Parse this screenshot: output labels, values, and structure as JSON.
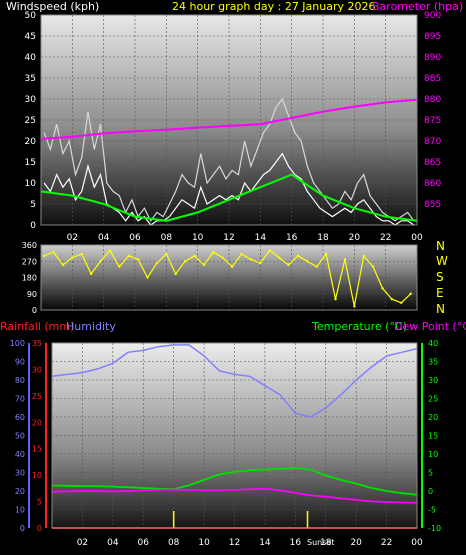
{
  "header": {
    "windspeed_label": "Windspeed (kph)",
    "title": "24 hour graph day : 27 January 2026",
    "barometer_label": "Barometer (hpa)"
  },
  "lower_header": {
    "rainfall_label": "Rainfall (mm)",
    "humidity_label": "Humidity",
    "temperature_label": "Temperature (°C)",
    "dewpoint_label": "Dew Point (°C)"
  },
  "compass": [
    "N",
    "W",
    "S",
    "E",
    "N"
  ],
  "sunset_label": "Sunset",
  "colors": {
    "windspeed": "#ffffff",
    "windgust": "#d8d8d8",
    "windavg": "#00ff00",
    "barometer": "#ff00ff",
    "direction": "#ffff00",
    "humidity": "#8080ff",
    "temperature": "#00e000",
    "dewpoint": "#ff00ff",
    "rainfall": "#ff2020",
    "title": "#ffff00"
  },
  "chart_data": [
    {
      "type": "line",
      "name": "wind-barometer",
      "xticks": [
        "02",
        "04",
        "06",
        "08",
        "10",
        "12",
        "14",
        "16",
        "18",
        "20",
        "22",
        "00"
      ],
      "xlim": [
        0,
        24
      ],
      "ylabel": "Windspeed (kph)",
      "ylim": [
        0,
        50
      ],
      "yticks": [
        0,
        5,
        10,
        15,
        20,
        25,
        30,
        35,
        40,
        45,
        50
      ],
      "y2label": "Barometer (hpa)",
      "y2lim": [
        850,
        900
      ],
      "y2ticks": [
        855,
        860,
        865,
        870,
        875,
        880,
        885,
        890,
        895,
        900
      ],
      "series": [
        {
          "name": "Windspeed gust",
          "x": [
            0.2,
            0.6,
            1.0,
            1.4,
            1.8,
            2.2,
            2.6,
            3.0,
            3.4,
            3.8,
            4.2,
            4.6,
            5.0,
            5.4,
            5.8,
            6.2,
            6.6,
            7.0,
            7.4,
            7.8,
            8.2,
            8.6,
            9.0,
            9.4,
            9.8,
            10.2,
            10.6,
            11.0,
            11.4,
            11.8,
            12.2,
            12.6,
            13.0,
            13.4,
            13.8,
            14.2,
            14.6,
            15.0,
            15.4,
            15.8,
            16.2,
            16.6,
            17.0,
            17.4,
            17.8,
            18.2,
            18.6,
            19.0,
            19.4,
            19.8,
            20.2,
            20.6,
            21.0,
            21.4,
            21.8,
            22.2,
            22.6,
            23.0,
            23.4,
            23.8
          ],
          "values": [
            22,
            18,
            24,
            17,
            20,
            12,
            16,
            27,
            18,
            24,
            10,
            8,
            7,
            3,
            6,
            2,
            4,
            1,
            3,
            2,
            5,
            8,
            12,
            10,
            9,
            17,
            10,
            12,
            14,
            11,
            13,
            12,
            20,
            14,
            18,
            22,
            24,
            28,
            30,
            26,
            22,
            20,
            14,
            10,
            8,
            6,
            4,
            5,
            8,
            6,
            10,
            12,
            7,
            5,
            3,
            2,
            1,
            2,
            3,
            1
          ]
        },
        {
          "name": "Windspeed",
          "x": [
            0.2,
            0.6,
            1.0,
            1.4,
            1.8,
            2.2,
            2.6,
            3.0,
            3.4,
            3.8,
            4.2,
            4.6,
            5.0,
            5.4,
            5.8,
            6.2,
            6.6,
            7.0,
            7.4,
            7.8,
            8.2,
            8.6,
            9.0,
            9.4,
            9.8,
            10.2,
            10.6,
            11.0,
            11.4,
            11.8,
            12.2,
            12.6,
            13.0,
            13.4,
            13.8,
            14.2,
            14.6,
            15.0,
            15.4,
            15.8,
            16.2,
            16.6,
            17.0,
            17.4,
            17.8,
            18.2,
            18.6,
            19.0,
            19.4,
            19.8,
            20.2,
            20.6,
            21.0,
            21.4,
            21.8,
            22.2,
            22.6,
            23.0,
            23.4,
            23.8
          ],
          "values": [
            10,
            8,
            12,
            9,
            11,
            6,
            8,
            14,
            9,
            12,
            5,
            4,
            3,
            1,
            3,
            1,
            2,
            0,
            1,
            1,
            2,
            4,
            6,
            5,
            4,
            9,
            5,
            6,
            7,
            6,
            7,
            6,
            10,
            8,
            10,
            12,
            13,
            15,
            17,
            14,
            12,
            11,
            8,
            6,
            4,
            3,
            2,
            3,
            4,
            3,
            5,
            6,
            4,
            2,
            1,
            1,
            0,
            1,
            1,
            0
          ]
        },
        {
          "name": "Windspeed average",
          "x": [
            0,
            2,
            4,
            6,
            8,
            10,
            12,
            14,
            16,
            18,
            20,
            22,
            24
          ],
          "values": [
            8,
            7,
            5,
            2,
            1,
            3,
            6,
            9,
            12,
            7,
            4,
            2,
            1
          ]
        },
        {
          "name": "Barometer",
          "x": [
            0,
            2,
            4,
            6,
            8,
            10,
            12,
            14,
            16,
            18,
            20,
            22,
            24
          ],
          "axis": "y2",
          "values": [
            870.5,
            871.0,
            871.8,
            872.3,
            872.7,
            873.2,
            873.6,
            874.0,
            875.5,
            877.0,
            878.2,
            879.2,
            879.8
          ]
        }
      ]
    },
    {
      "type": "scatter",
      "name": "wind-direction",
      "ylim": [
        0,
        360
      ],
      "yticks": [
        0,
        90,
        180,
        270,
        360
      ],
      "series": [
        {
          "name": "Direction",
          "x": [
            0.2,
            0.8,
            1.4,
            2.0,
            2.6,
            3.2,
            3.8,
            4.4,
            5.0,
            5.6,
            6.2,
            6.8,
            7.4,
            8.0,
            8.6,
            9.2,
            9.8,
            10.4,
            11.0,
            11.6,
            12.2,
            12.8,
            13.4,
            14.0,
            14.6,
            15.2,
            15.8,
            16.4,
            17.0,
            17.6,
            18.2,
            18.8,
            19.4,
            20.0,
            20.6,
            21.2,
            21.8,
            22.4,
            23.0,
            23.6
          ],
          "values": [
            300,
            320,
            250,
            290,
            310,
            200,
            270,
            330,
            240,
            300,
            280,
            180,
            260,
            310,
            200,
            270,
            300,
            250,
            320,
            290,
            240,
            310,
            280,
            260,
            330,
            290,
            250,
            300,
            270,
            240,
            310,
            60,
            280,
            20,
            300,
            240,
            120,
            60,
            40,
            90
          ]
        }
      ]
    },
    {
      "type": "line",
      "name": "temperature-humidity",
      "xticks": [
        "02",
        "04",
        "06",
        "08",
        "10",
        "12",
        "14",
        "16",
        "18",
        "20",
        "22",
        "00"
      ],
      "xlim": [
        0,
        24
      ],
      "ylabel": "Humidity",
      "ylim": [
        0,
        100
      ],
      "yticks": [
        0,
        10,
        20,
        30,
        40,
        50,
        60,
        70,
        80,
        90,
        100
      ],
      "rain_label": "Rainfall (mm)",
      "rain_lim": [
        0,
        35
      ],
      "rain_ticks": [
        0,
        5,
        10,
        15,
        20,
        25,
        30,
        35
      ],
      "y2label": "Temperature (°C)",
      "y2lim": [
        -10,
        40
      ],
      "y2ticks": [
        -10,
        -5,
        0,
        5,
        10,
        15,
        20,
        25,
        30,
        35,
        40
      ],
      "series": [
        {
          "name": "Humidity",
          "x": [
            0,
            1,
            2,
            3,
            4,
            5,
            6,
            7,
            8,
            9,
            10,
            11,
            12,
            13,
            14,
            15,
            16,
            17,
            18,
            19,
            20,
            21,
            22,
            23,
            24
          ],
          "values": [
            82,
            83,
            84,
            86,
            89,
            95,
            96,
            98,
            99,
            99,
            93,
            85,
            83,
            82,
            77,
            72,
            62,
            60,
            65,
            72,
            80,
            87,
            93,
            95,
            97
          ]
        },
        {
          "name": "Temperature",
          "x": [
            0,
            1,
            2,
            3,
            4,
            5,
            6,
            7,
            8,
            9,
            10,
            11,
            12,
            13,
            14,
            15,
            16,
            17,
            18,
            19,
            20,
            21,
            22,
            23,
            24
          ],
          "axis": "y2",
          "values": [
            1.5,
            1.4,
            1.3,
            1.3,
            1.2,
            1.0,
            0.8,
            0.6,
            0.5,
            1.5,
            3.0,
            4.5,
            5.2,
            5.6,
            5.8,
            6.0,
            6.2,
            5.8,
            4.2,
            3.0,
            2.0,
            0.8,
            0.0,
            -0.6,
            -1.0
          ]
        },
        {
          "name": "Dew Point",
          "x": [
            0,
            1,
            2,
            3,
            4,
            5,
            6,
            7,
            8,
            9,
            10,
            11,
            12,
            13,
            14,
            15,
            16,
            17,
            18,
            19,
            20,
            21,
            22,
            23,
            24
          ],
          "axis": "y2",
          "values": [
            -0.2,
            -0.1,
            0.0,
            0.0,
            -0.1,
            0.0,
            0.2,
            0.3,
            0.4,
            0.3,
            0.2,
            0.2,
            0.3,
            0.5,
            0.6,
            0.2,
            -0.5,
            -1.2,
            -1.5,
            -2.0,
            -2.4,
            -2.8,
            -3.0,
            -3.1,
            -3.2
          ]
        },
        {
          "name": "Rainfall",
          "x": [
            0,
            24
          ],
          "axis": "rain",
          "values": [
            0,
            0
          ]
        }
      ]
    }
  ]
}
